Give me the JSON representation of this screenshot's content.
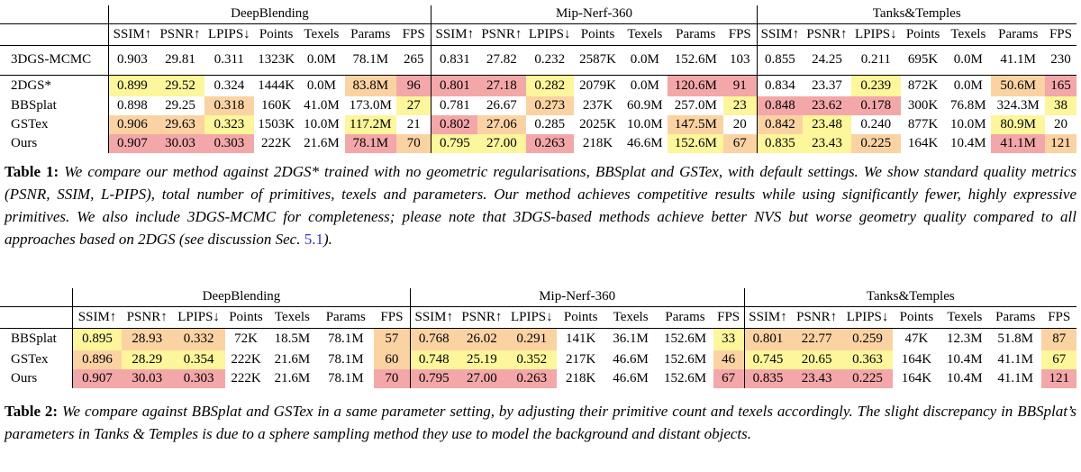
{
  "table1": {
    "groups": [
      "DeepBlending",
      "Mip-Nerf-360",
      "Tanks&Temples"
    ],
    "columns": [
      "SSIM↑",
      "PSNR↑",
      "LPIPS↓",
      "Points",
      "Texels",
      "Params",
      "FPS"
    ],
    "reference_row": {
      "method": "3DGS-MCMC",
      "cells": [
        "0.903",
        "29.81",
        "0.311",
        "1323K",
        "0.0M",
        "78.1M",
        "265",
        "0.831",
        "27.82",
        "0.232",
        "2587K",
        "0.0M",
        "152.6M",
        "103",
        "0.855",
        "24.25",
        "0.211",
        "695K",
        "0.0M",
        "41.1M",
        "230"
      ],
      "colors": [
        "",
        "",
        "",
        "",
        "",
        "",
        "",
        "",
        "",
        "",
        "",
        "",
        "",
        "",
        "",
        "",
        "",
        "",
        "",
        "",
        ""
      ]
    },
    "rows": [
      {
        "method": "2DGS*",
        "cells": [
          "0.899",
          "29.52",
          "0.324",
          "1444K",
          "0.0M",
          "83.8M",
          "96",
          "0.801",
          "27.18",
          "0.282",
          "2079K",
          "0.0M",
          "120.6M",
          "91",
          "0.834",
          "23.37",
          "0.239",
          "872K",
          "0.0M",
          "50.6M",
          "165"
        ],
        "colors": [
          "yel",
          "yel",
          "",
          "",
          "",
          "org",
          "red",
          "red",
          "red",
          "yel",
          "",
          "",
          "red",
          "red",
          "",
          "",
          "yel",
          "",
          "",
          "org",
          "red"
        ]
      },
      {
        "method": "BBSplat",
        "cells": [
          "0.898",
          "29.25",
          "0.318",
          "160K",
          "41.0M",
          "173.0M",
          "27",
          "0.781",
          "26.67",
          "0.273",
          "237K",
          "60.9M",
          "257.0M",
          "23",
          "0.848",
          "23.62",
          "0.178",
          "300K",
          "76.8M",
          "324.3M",
          "38"
        ],
        "colors": [
          "",
          "",
          "org",
          "",
          "",
          "",
          "yel",
          "",
          "",
          "org",
          "",
          "",
          "",
          "yel",
          "red",
          "red",
          "red",
          "",
          "",
          "",
          "yel"
        ]
      },
      {
        "method": "GSTex",
        "cells": [
          "0.906",
          "29.63",
          "0.323",
          "1503K",
          "10.0M",
          "117.2M",
          "21",
          "0.802",
          "27.06",
          "0.285",
          "2025K",
          "10.0M",
          "147.5M",
          "20",
          "0.842",
          "23.48",
          "0.240",
          "877K",
          "10.0M",
          "80.9M",
          "20"
        ],
        "colors": [
          "org",
          "org",
          "yel",
          "",
          "",
          "yel",
          "",
          "red",
          "org",
          "",
          "",
          "",
          "org",
          "",
          "org",
          "yel",
          "",
          "",
          "",
          "yel",
          ""
        ]
      },
      {
        "method": "Ours",
        "cells": [
          "0.907",
          "30.03",
          "0.303",
          "222K",
          "21.6M",
          "78.1M",
          "70",
          "0.795",
          "27.00",
          "0.263",
          "218K",
          "46.6M",
          "152.6M",
          "67",
          "0.835",
          "23.43",
          "0.225",
          "164K",
          "10.4M",
          "41.1M",
          "121"
        ],
        "colors": [
          "red",
          "red",
          "red",
          "",
          "",
          "red",
          "org",
          "yel",
          "yel",
          "red",
          "",
          "",
          "yel",
          "org",
          "yel",
          "yel",
          "org",
          "",
          "",
          "red",
          "org"
        ]
      }
    ]
  },
  "caption1": {
    "label": "Table 1:",
    "text": "We compare our method against 2DGS* trained with no geometric regularisations, BBSplat and GSTex, with default settings. We show standard quality metrics (PSNR, SSIM, L-PIPS), total number of primitives, texels and parameters. Our method achieves competitive results while using significantly fewer, highly expressive primitives. We also include 3DGS-MCMC for completeness; please note that 3DGS-based methods achieve better NVS but worse geometry quality compared to all approaches based on 2DGS (see discussion Sec.",
    "link": "5.1",
    "tail": ")."
  },
  "table2": {
    "groups": [
      "DeepBlending",
      "Mip-Nerf-360",
      "Tanks&Temples"
    ],
    "columns": [
      "SSIM↑",
      "PSNR↑",
      "LPIPS↓",
      "Points",
      "Texels",
      "Params",
      "FPS"
    ],
    "rows": [
      {
        "method": "BBSplat",
        "cells": [
          "0.895",
          "28.93",
          "0.332",
          "72K",
          "18.5M",
          "78.1M",
          "57",
          "0.768",
          "26.02",
          "0.291",
          "141K",
          "36.1M",
          "152.6M",
          "33",
          "0.801",
          "22.77",
          "0.259",
          "47K",
          "12.3M",
          "51.8M",
          "87"
        ],
        "colors": [
          "yel",
          "org",
          "org",
          "",
          "",
          "",
          "org",
          "org",
          "org",
          "org",
          "",
          "",
          "",
          "yel",
          "org",
          "org",
          "org",
          "",
          "",
          "",
          "org"
        ]
      },
      {
        "method": "GSTex",
        "cells": [
          "0.896",
          "28.29",
          "0.354",
          "222K",
          "21.6M",
          "78.1M",
          "60",
          "0.748",
          "25.19",
          "0.352",
          "217K",
          "46.6M",
          "152.6M",
          "46",
          "0.745",
          "20.65",
          "0.363",
          "164K",
          "10.4M",
          "41.1M",
          "67"
        ],
        "colors": [
          "org",
          "yel",
          "yel",
          "",
          "",
          "",
          "org",
          "yel",
          "yel",
          "yel",
          "",
          "",
          "",
          "org",
          "yel",
          "yel",
          "yel",
          "",
          "",
          "",
          "yel"
        ]
      },
      {
        "method": "Ours",
        "cells": [
          "0.907",
          "30.03",
          "0.303",
          "222K",
          "21.6M",
          "78.1M",
          "70",
          "0.795",
          "27.00",
          "0.263",
          "218K",
          "46.6M",
          "152.6M",
          "67",
          "0.835",
          "23.43",
          "0.225",
          "164K",
          "10.4M",
          "41.1M",
          "121"
        ],
        "colors": [
          "red",
          "red",
          "red",
          "",
          "",
          "",
          "red",
          "red",
          "red",
          "red",
          "",
          "",
          "",
          "red",
          "red",
          "red",
          "red",
          "",
          "",
          "",
          "red"
        ]
      }
    ]
  },
  "caption2": {
    "label": "Table 2:",
    "text": "We compare against BBSplat and GSTex in a same parameter setting, by adjusting their primitive count and texels accordingly. The slight discrepancy in BBSplat’s parameters in Tanks & Temples is due to a sphere sampling method they use to model the background and distant objects."
  }
}
